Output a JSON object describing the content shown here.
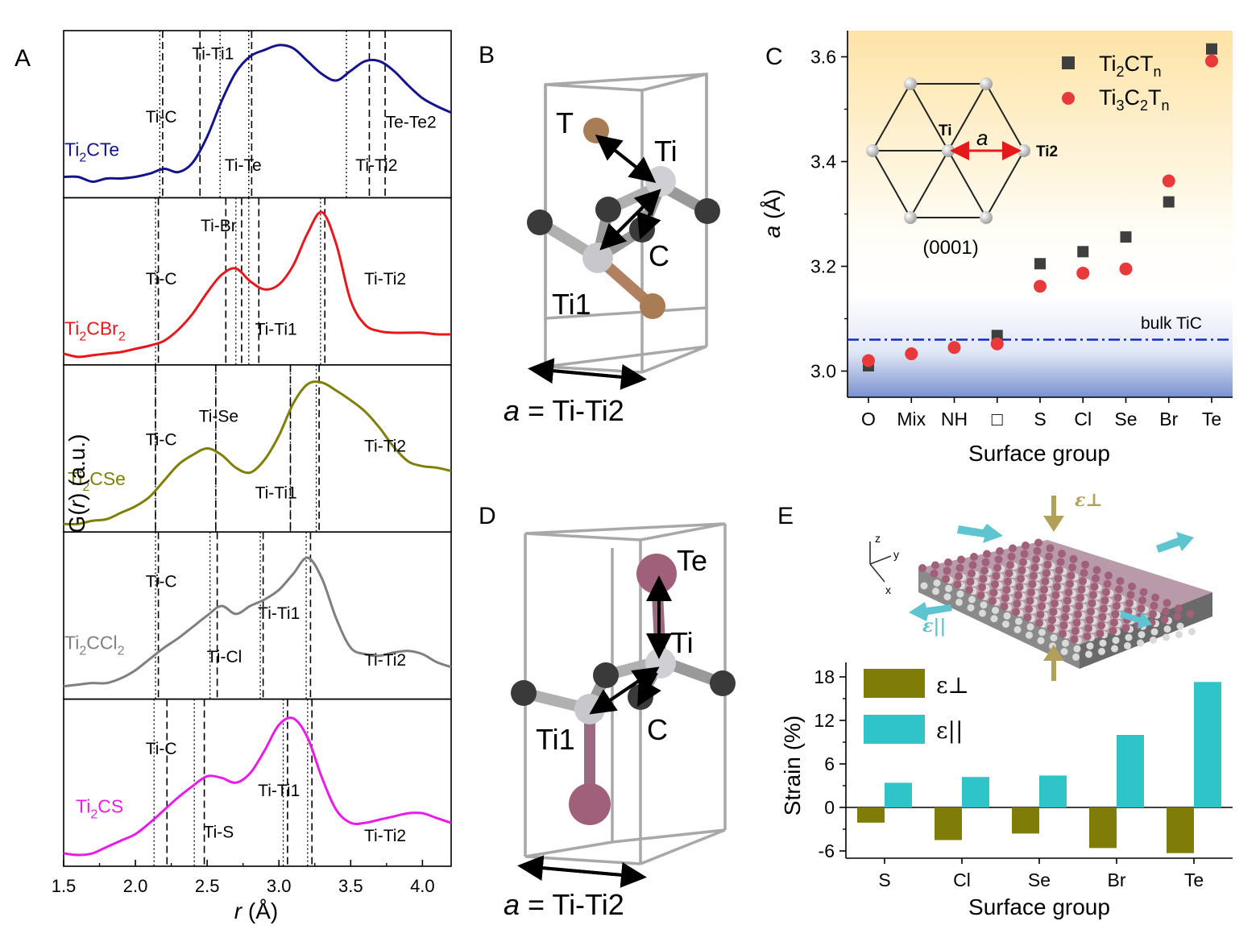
{
  "panels": {
    "A": "A",
    "B": "B",
    "C": "C",
    "D": "D",
    "E": "E"
  },
  "colors": {
    "Ti2CTe": "#14148c",
    "Ti2CBr2": "#e8171b",
    "Ti2CSe": "#7f7f08",
    "Ti2CCl2": "#7f7f7f",
    "Ti2CS": "#e81ce8",
    "accent_cyan": "#2ec4c8",
    "olive": "#807c08",
    "ti3c2": "#e83a3a",
    "ti2c": "#3f3f3f"
  },
  "panelA": {
    "ylabel": "G(r) (a.u.)",
    "xlabel": "r (Å)",
    "xticks": [
      "1.5",
      "2.0",
      "2.5",
      "3.0",
      "3.5",
      "4.0"
    ],
    "sub": [
      {
        "name": "Ti2CTe",
        "label_main": "Ti",
        "label_sub": "2",
        "label_rest": "CTe",
        "bond_labels": [
          "Ti-Ti1",
          "Ti-C",
          "Ti-Te",
          "Ti-Ti2",
          "Te-Te2"
        ]
      },
      {
        "name": "Ti2CBr2",
        "label_main": "Ti",
        "label_sub": "2",
        "label_rest": "CBr",
        "label_sub2": "2",
        "bond_labels": [
          "Ti-Br",
          "Ti-C",
          "Ti-Ti1",
          "Ti-Ti2"
        ]
      },
      {
        "name": "Ti2CSe",
        "label_main": "Ti",
        "label_sub": "2",
        "label_rest": "CSe",
        "bond_labels": [
          "Ti-Se",
          "Ti-C",
          "Ti-Ti2",
          "Ti-Ti1"
        ]
      },
      {
        "name": "Ti2CCl2",
        "label_main": "Ti",
        "label_sub": "2",
        "label_rest": "CCl",
        "label_sub2": "2",
        "bond_labels": [
          "Ti-C",
          "Ti-Ti1",
          "Ti-Cl",
          "Ti-Ti2"
        ]
      },
      {
        "name": "Ti2CS",
        "label_main": "Ti",
        "label_sub": "2",
        "label_rest": "CS",
        "bond_labels": [
          "Ti-C",
          "Ti-Ti1",
          "Ti-S",
          "Ti-Ti2"
        ]
      }
    ]
  },
  "panelB": {
    "labels": [
      "T",
      "Ti",
      "C",
      "Ti1"
    ],
    "caption_a": "a",
    "caption_rest": " = Ti-Ti2"
  },
  "panelD": {
    "labels": [
      "Te",
      "Ti",
      "Ti1",
      "C"
    ],
    "caption_a": "a",
    "caption_rest": " = Ti-Ti2"
  },
  "panelC_text": {
    "inset_ti": "Ti",
    "inset_a": "a",
    "inset_ti2": "Ti2",
    "inset_plane": "(0001)",
    "bulk": "bulk TiC",
    "legend1_a": "Ti",
    "legend1_b": "2",
    "legend1_c": "CT",
    "legend1_d": "n",
    "legend2_a": "Ti",
    "legend2_b": "3",
    "legend2_c": "C",
    "legend2_d": "2",
    "legend2_e": "T",
    "legend2_f": "n"
  },
  "panelE_text": {
    "eps_perp": "ε⊥",
    "eps_par": "ε||",
    "axis_z": "z",
    "axis_y": "y",
    "axis_x": "x"
  },
  "chart_data": [
    {
      "type": "line",
      "panel": "A",
      "xlabel": "r (Å)",
      "ylabel": "G(r) (a.u.)",
      "xlim": [
        1.5,
        4.2
      ],
      "series": [
        {
          "name": "Ti2CTe",
          "x": [
            1.5,
            1.6,
            1.7,
            1.8,
            1.9,
            2.0,
            2.1,
            2.2,
            2.3,
            2.4,
            2.5,
            2.6,
            2.7,
            2.8,
            2.9,
            3.0,
            3.1,
            3.2,
            3.3,
            3.4,
            3.5,
            3.6,
            3.7,
            3.8,
            3.9,
            4.0,
            4.1,
            4.2
          ],
          "y": [
            0.13,
            0.13,
            0.1,
            0.12,
            0.12,
            0.13,
            0.15,
            0.18,
            0.16,
            0.22,
            0.38,
            0.6,
            0.78,
            0.88,
            0.92,
            0.95,
            0.93,
            0.85,
            0.77,
            0.73,
            0.79,
            0.85,
            0.85,
            0.79,
            0.7,
            0.62,
            0.57,
            0.53
          ]
        },
        {
          "name": "Ti2CBr2",
          "x": [
            1.5,
            1.6,
            1.7,
            1.8,
            1.9,
            2.0,
            2.1,
            2.2,
            2.3,
            2.4,
            2.5,
            2.6,
            2.7,
            2.8,
            2.9,
            3.0,
            3.1,
            3.2,
            3.3,
            3.4,
            3.5,
            3.6,
            3.7,
            3.8,
            3.9,
            4.0,
            4.1,
            4.2
          ],
          "y": [
            0.07,
            0.05,
            0.06,
            0.07,
            0.08,
            0.1,
            0.12,
            0.15,
            0.22,
            0.32,
            0.45,
            0.56,
            0.6,
            0.52,
            0.47,
            0.5,
            0.62,
            0.82,
            0.95,
            0.75,
            0.4,
            0.25,
            0.21,
            0.2,
            0.2,
            0.2,
            0.19,
            0.19
          ]
        },
        {
          "name": "Ti2CSe",
          "x": [
            1.5,
            1.6,
            1.7,
            1.8,
            1.9,
            2.0,
            2.1,
            2.2,
            2.3,
            2.4,
            2.5,
            2.6,
            2.7,
            2.8,
            2.9,
            3.0,
            3.1,
            3.2,
            3.3,
            3.4,
            3.5,
            3.6,
            3.7,
            3.8,
            3.9,
            4.0,
            4.1,
            4.2
          ],
          "y": [
            0.05,
            0.05,
            0.07,
            0.08,
            0.12,
            0.16,
            0.22,
            0.32,
            0.42,
            0.48,
            0.52,
            0.48,
            0.4,
            0.37,
            0.45,
            0.6,
            0.8,
            0.92,
            0.93,
            0.88,
            0.82,
            0.75,
            0.65,
            0.53,
            0.44,
            0.41,
            0.4,
            0.38
          ]
        },
        {
          "name": "Ti2CCl2",
          "x": [
            1.5,
            1.6,
            1.7,
            1.8,
            1.9,
            2.0,
            2.1,
            2.2,
            2.3,
            2.4,
            2.5,
            2.6,
            2.7,
            2.8,
            2.9,
            3.0,
            3.1,
            3.2,
            3.3,
            3.4,
            3.5,
            3.6,
            3.7,
            3.8,
            3.9,
            4.0,
            4.1,
            4.2
          ],
          "y": [
            0.08,
            0.09,
            0.1,
            0.1,
            0.13,
            0.18,
            0.25,
            0.32,
            0.38,
            0.45,
            0.52,
            0.58,
            0.53,
            0.58,
            0.62,
            0.68,
            0.78,
            0.88,
            0.75,
            0.5,
            0.32,
            0.28,
            0.27,
            0.29,
            0.3,
            0.28,
            0.23,
            0.2
          ]
        },
        {
          "name": "Ti2CS",
          "x": [
            1.5,
            1.6,
            1.7,
            1.8,
            1.9,
            2.0,
            2.1,
            2.2,
            2.3,
            2.4,
            2.5,
            2.6,
            2.7,
            2.8,
            2.9,
            3.0,
            3.1,
            3.2,
            3.3,
            3.4,
            3.5,
            3.6,
            3.7,
            3.8,
            3.9,
            4.0,
            4.1,
            4.2
          ],
          "y": [
            0.08,
            0.07,
            0.08,
            0.12,
            0.16,
            0.2,
            0.27,
            0.35,
            0.43,
            0.5,
            0.56,
            0.55,
            0.52,
            0.58,
            0.72,
            0.88,
            0.92,
            0.8,
            0.55,
            0.35,
            0.27,
            0.27,
            0.29,
            0.31,
            0.33,
            0.33,
            0.3,
            0.27
          ]
        }
      ]
    },
    {
      "type": "scatter",
      "panel": "C",
      "xlabel": "Surface group",
      "ylabel": "a (Å)",
      "categories": [
        "O",
        "Mix",
        "NH",
        "□",
        "S",
        "Cl",
        "Se",
        "Br",
        "Te"
      ],
      "ylim": [
        2.95,
        3.65
      ],
      "yticks": [
        3.0,
        3.2,
        3.4,
        3.6
      ],
      "reference_line": {
        "label": "bulk TiC",
        "y": 3.06
      },
      "series": [
        {
          "name": "Ti2CTn",
          "marker": "square",
          "values": [
            3.01,
            null,
            null,
            3.068,
            3.205,
            3.228,
            3.256,
            3.323,
            3.615
          ]
        },
        {
          "name": "Ti3C2Tn",
          "marker": "circle",
          "values": [
            3.02,
            3.033,
            3.045,
            3.052,
            3.162,
            3.187,
            3.195,
            3.363,
            3.592
          ]
        }
      ]
    },
    {
      "type": "bar",
      "panel": "E",
      "xlabel": "Surface group",
      "ylabel": "Strain (%)",
      "categories": [
        "S",
        "Cl",
        "Se",
        "Br",
        "Te"
      ],
      "ylim": [
        -7,
        20
      ],
      "yticks": [
        -6,
        0,
        6,
        12,
        18
      ],
      "series": [
        {
          "name": "ε⊥",
          "values": [
            -2.1,
            -4.5,
            -3.6,
            -5.6,
            -6.3
          ]
        },
        {
          "name": "ε||",
          "values": [
            3.4,
            4.2,
            4.4,
            10.0,
            17.3
          ]
        }
      ]
    }
  ]
}
